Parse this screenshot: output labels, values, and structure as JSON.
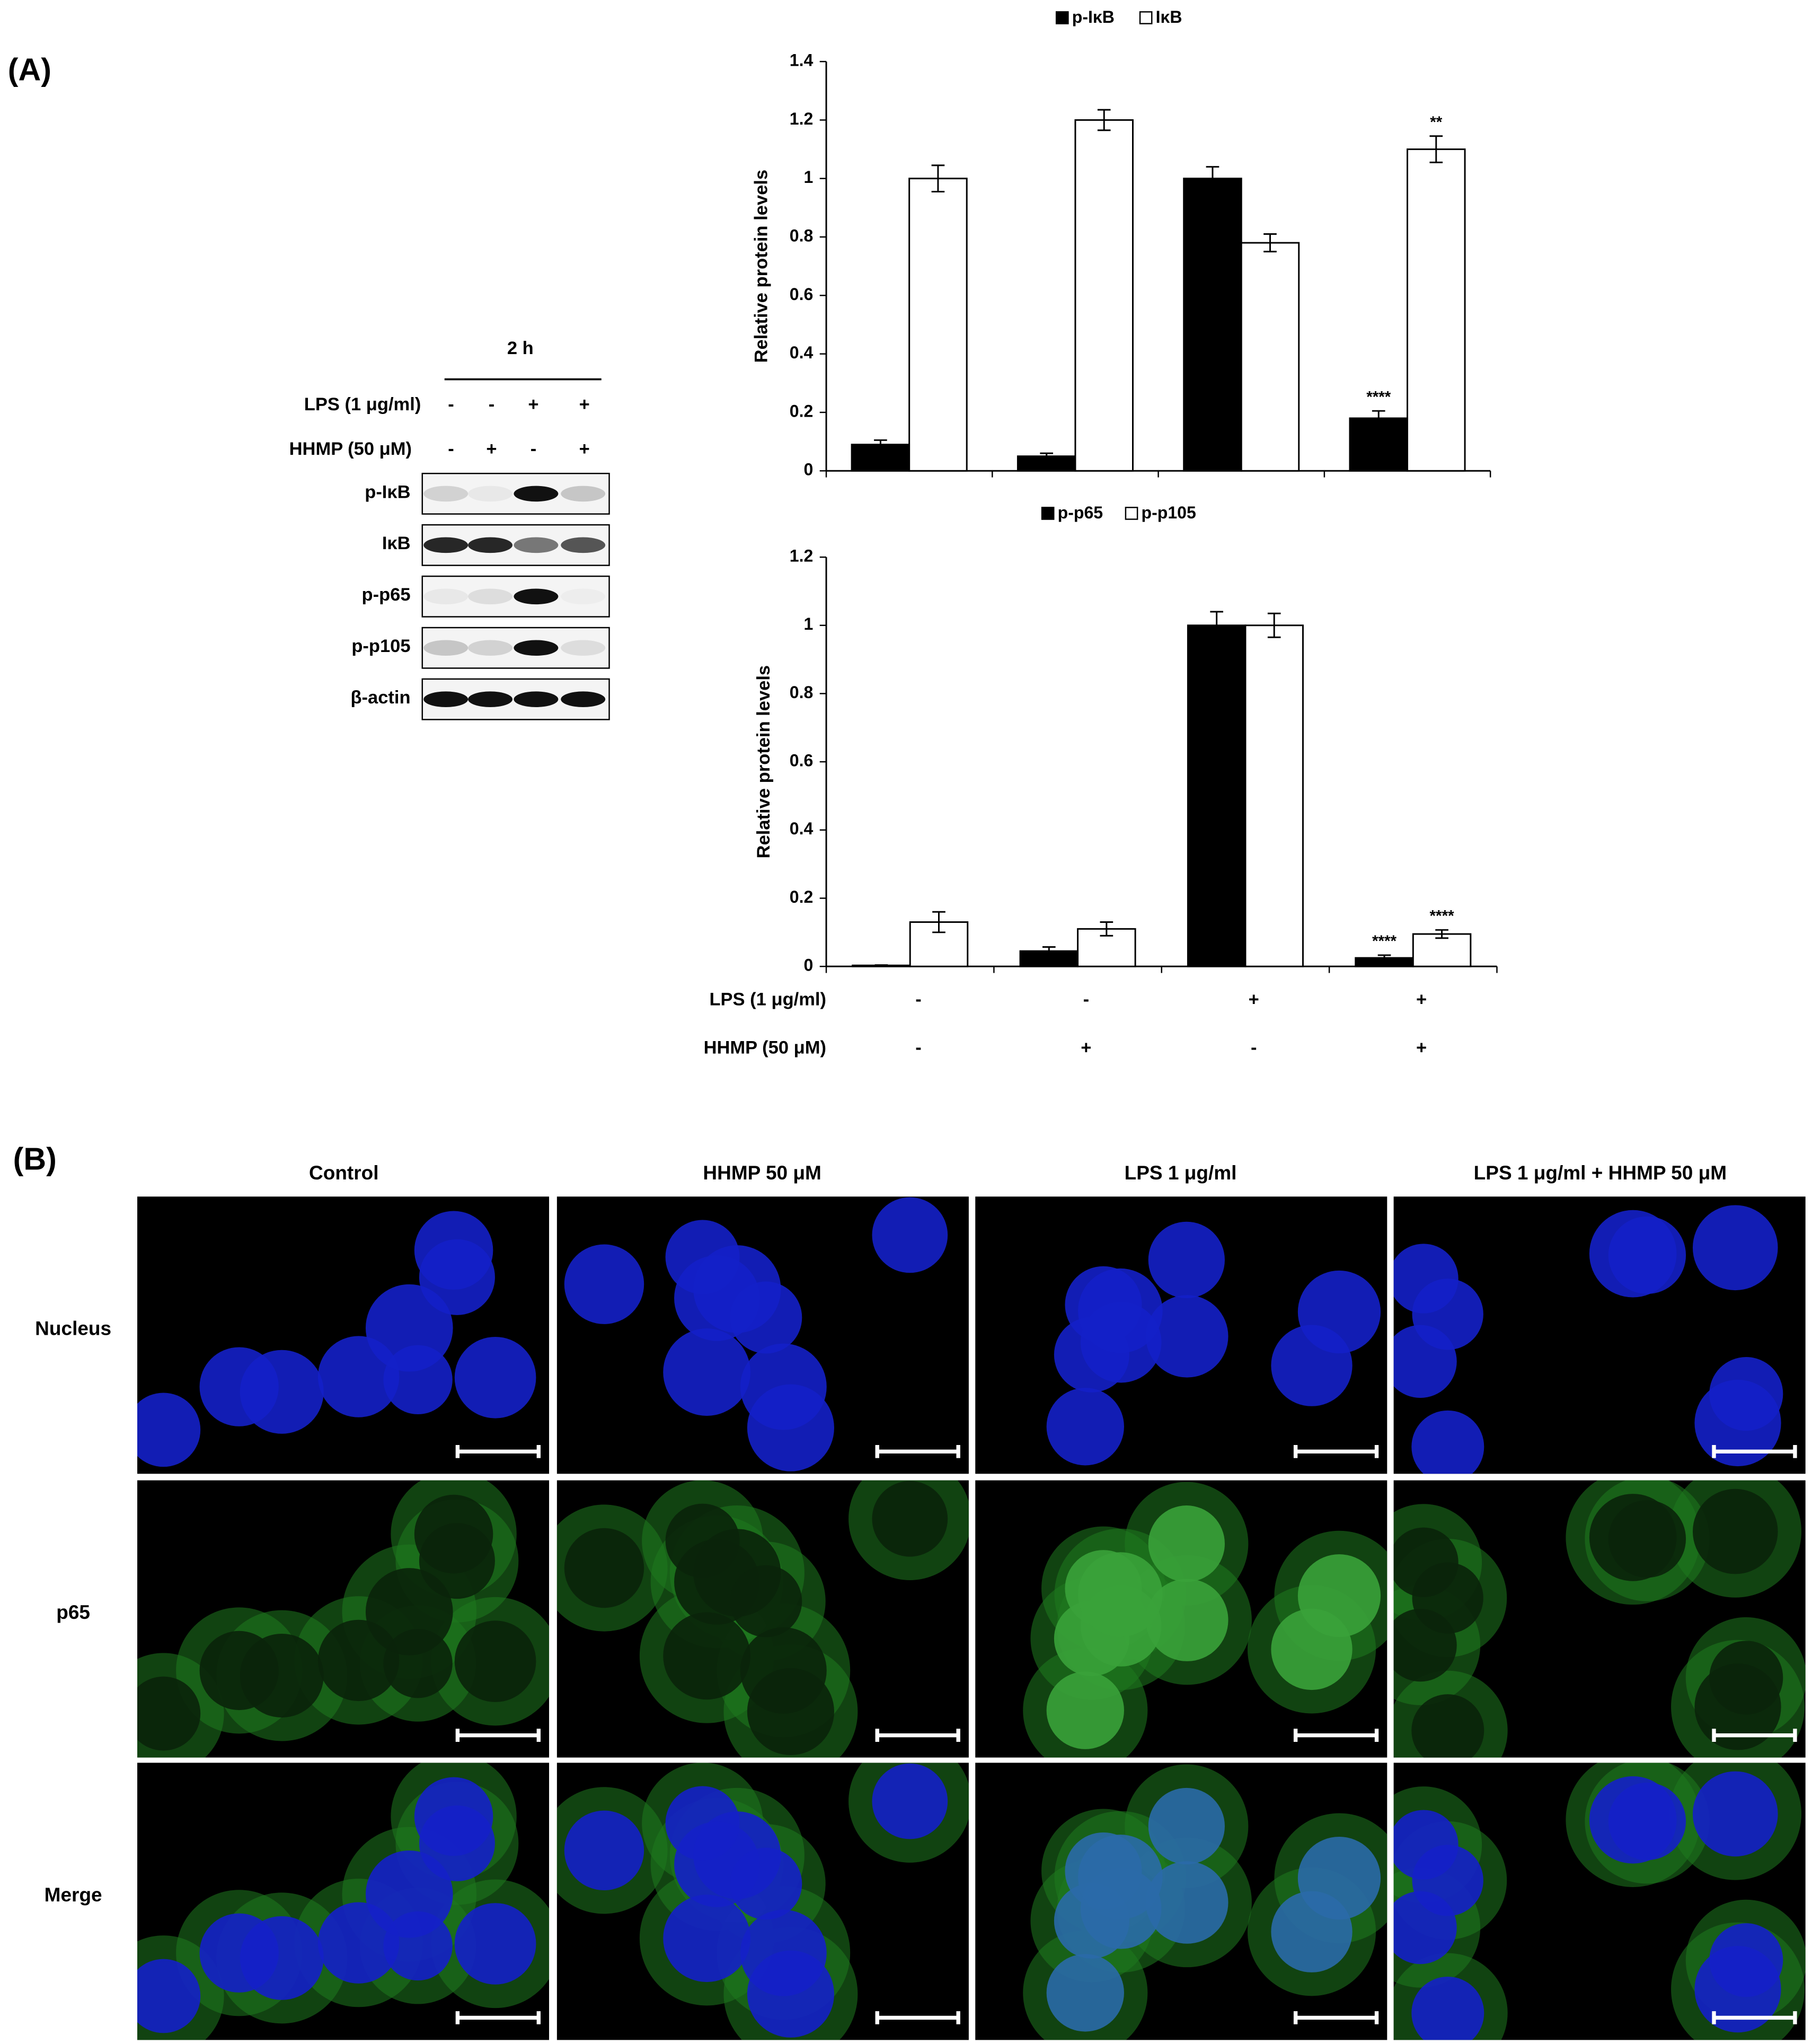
{
  "chart_data": [
    {
      "type": "bar",
      "y_label": "Relative protein levels",
      "categories": [
        null,
        null,
        null,
        null
      ],
      "ylim": [
        0,
        1.4
      ],
      "yticks": [
        0,
        0.2,
        0.4,
        0.6,
        0.8,
        1,
        1.2,
        1.4
      ],
      "series": [
        {
          "name": "p-IκB",
          "color": "#000000",
          "values": [
            0.09,
            0.05,
            1.0,
            0.18
          ],
          "errors": [
            0.015,
            0.01,
            0.04,
            0.025
          ],
          "significance": [
            null,
            null,
            null,
            "****"
          ]
        },
        {
          "name": "IκB",
          "color": "#ffffff",
          "values": [
            1.0,
            1.2,
            0.78,
            1.1
          ],
          "errors": [
            0.045,
            0.035,
            0.03,
            0.045
          ],
          "significance": [
            null,
            null,
            null,
            "**"
          ]
        }
      ]
    },
    {
      "type": "bar",
      "y_label": "Relative protein levels",
      "categories": [
        null,
        null,
        null,
        null
      ],
      "ylim": [
        0,
        1.2
      ],
      "yticks": [
        0,
        0.2,
        0.4,
        0.6,
        0.8,
        1,
        1.2
      ],
      "series": [
        {
          "name": "p-p65",
          "color": "#000000",
          "values": [
            0.003,
            0.045,
            1.0,
            0.025
          ],
          "errors": [
            0.001,
            0.012,
            0.04,
            0.008
          ],
          "significance": [
            null,
            null,
            null,
            "****"
          ]
        },
        {
          "name": "p-p105",
          "color": "#ffffff",
          "values": [
            0.13,
            0.11,
            1.0,
            0.095
          ],
          "errors": [
            0.03,
            0.02,
            0.035,
            0.012
          ],
          "significance": [
            null,
            null,
            null,
            "****"
          ]
        }
      ],
      "conditions": [
        {
          "label": "LPS (1 μg/ml)",
          "values": [
            "-",
            "-",
            "+",
            "+"
          ]
        },
        {
          "label": "HHMP (50 μM)",
          "values": [
            "-",
            "+",
            "-",
            "+"
          ]
        }
      ]
    }
  ],
  "panel_a": {
    "label": "(A)"
  },
  "blot": {
    "time": "2 h",
    "conditions": [
      {
        "label": "LPS (1 μg/ml)",
        "values": [
          "-",
          "-",
          "+",
          "+"
        ]
      },
      {
        "label": "HHMP (50 μM)",
        "values": [
          "-",
          "+",
          "-",
          "+"
        ]
      }
    ],
    "proteins": [
      "p-IκB",
      "IκB",
      "p-p65",
      "p-p105",
      "β-actin"
    ]
  },
  "panel_b": {
    "label": "(B)",
    "columns": [
      "Control",
      "HHMP 50 μM",
      "LPS 1 μg/ml",
      "LPS 1 μg/ml + HHMP 50 μM"
    ],
    "rows": [
      "Nucleus",
      "p65",
      "Merge"
    ]
  }
}
